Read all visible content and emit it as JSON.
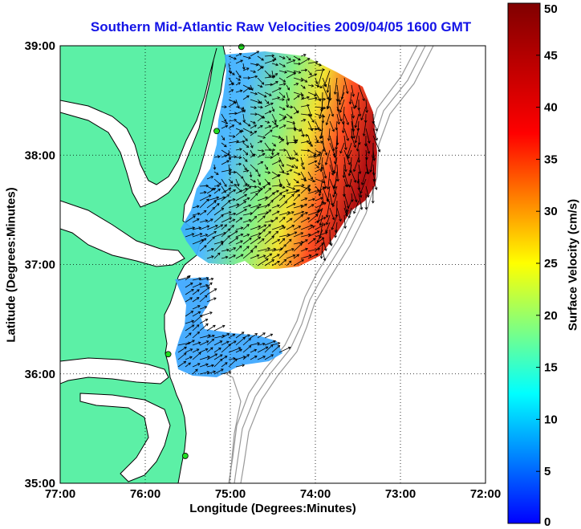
{
  "title": "Southern Mid-Atlantic Raw Velocities 2009/04/05 1600 GMT",
  "xlabel": "Longitude (Degrees:Minutes)",
  "ylabel": "Latitude (Degrees:Minutes)",
  "colorbar_label": "Surface Velocity (cm/s)",
  "chart_data": {
    "type": "heatmap",
    "title": "Southern Mid-Atlantic Raw Velocities 2009/04/05 1600 GMT",
    "xlabel": "Longitude (Degrees:Minutes)",
    "ylabel": "Latitude (Degrees:Minutes)",
    "x_ticks": [
      "77:00",
      "76:00",
      "75:00",
      "74:00",
      "73:00",
      "72:00"
    ],
    "y_ticks": [
      "39:00",
      "38:00",
      "37:00",
      "36:00",
      "35:00"
    ],
    "xlim": [
      -77,
      -72
    ],
    "ylim": [
      35,
      39
    ],
    "grid": true,
    "colorbar": {
      "label": "Surface Velocity (cm/s)",
      "range": [
        0,
        50
      ],
      "ticks": [
        0,
        5,
        10,
        15,
        20,
        25,
        30,
        35,
        40,
        45,
        50
      ],
      "colormap": "jet"
    },
    "radar_sites": [
      {
        "lon": -74.87,
        "lat": 38.99
      },
      {
        "lon": -75.16,
        "lat": 38.22
      },
      {
        "lon": -75.73,
        "lat": 36.18
      },
      {
        "lon": -75.53,
        "lat": 35.25
      }
    ],
    "colors": {
      "land": "#5cf0a6",
      "coast": "#000000",
      "bathymetry": "#999999",
      "title": "#1414e6"
    }
  }
}
